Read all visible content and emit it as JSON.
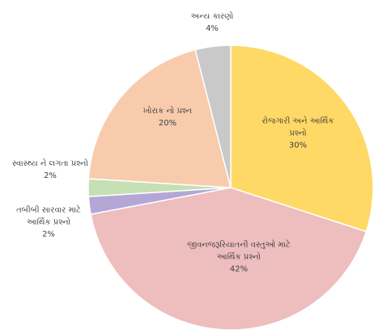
{
  "chart_data": {
    "type": "pie",
    "categories": [
      "રોજગારી અને આર્થિક પ્રશ્નો",
      "જીવનજરૂરિયાતની વસ્તુઓ માટે આર્થિક પ્રશ્નો",
      "તબીબી સારવાર માટે આર્થિક પ્રશ્નો",
      "સ્વાસ્થ્ય ને લગતા પ્રશ્નો",
      "ખોરાક નો પ્રશ્ન",
      "અન્ય કારણો"
    ],
    "values": [
      30,
      42,
      2,
      2,
      20,
      4
    ],
    "value_labels": [
      "30%",
      "42%",
      "2%",
      "2%",
      "20%",
      "4%"
    ],
    "colors": [
      "#FFD966",
      "#EEBDBD",
      "#B4A7D6",
      "#C5E0B4",
      "#F8CBAD",
      "#C9C9C9"
    ]
  }
}
